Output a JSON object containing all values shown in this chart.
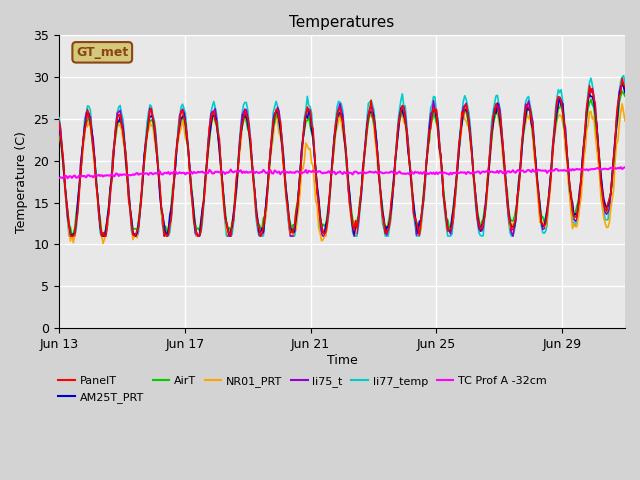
{
  "title": "Temperatures",
  "xlabel": "Time",
  "ylabel": "Temperature (C)",
  "ylim": [
    0,
    35
  ],
  "yticks": [
    0,
    5,
    10,
    15,
    20,
    25,
    30,
    35
  ],
  "xlim_days": [
    0,
    18
  ],
  "x_tick_labels": [
    "Jun 13",
    "Jun 17",
    "Jun 21",
    "Jun 25",
    "Jun 29"
  ],
  "x_tick_positions": [
    0,
    4,
    8,
    12,
    16
  ],
  "bg_color": "#e8e8e8",
  "plot_bg_color": "#e8e8e8",
  "grid_color": "#ffffff",
  "series_colors": {
    "PanelT": "#ff0000",
    "AM25T_PRT": "#0000cd",
    "AirT": "#00cc00",
    "NR01_PRT": "#ffa500",
    "li75_t": "#9400d3",
    "li77_temp": "#00cccc",
    "TC Prof A -32cm": "#ff00ff"
  },
  "legend_box_color": "#d4c87a",
  "legend_box_text": "GT_met",
  "n_points": 400,
  "days_total": 18
}
